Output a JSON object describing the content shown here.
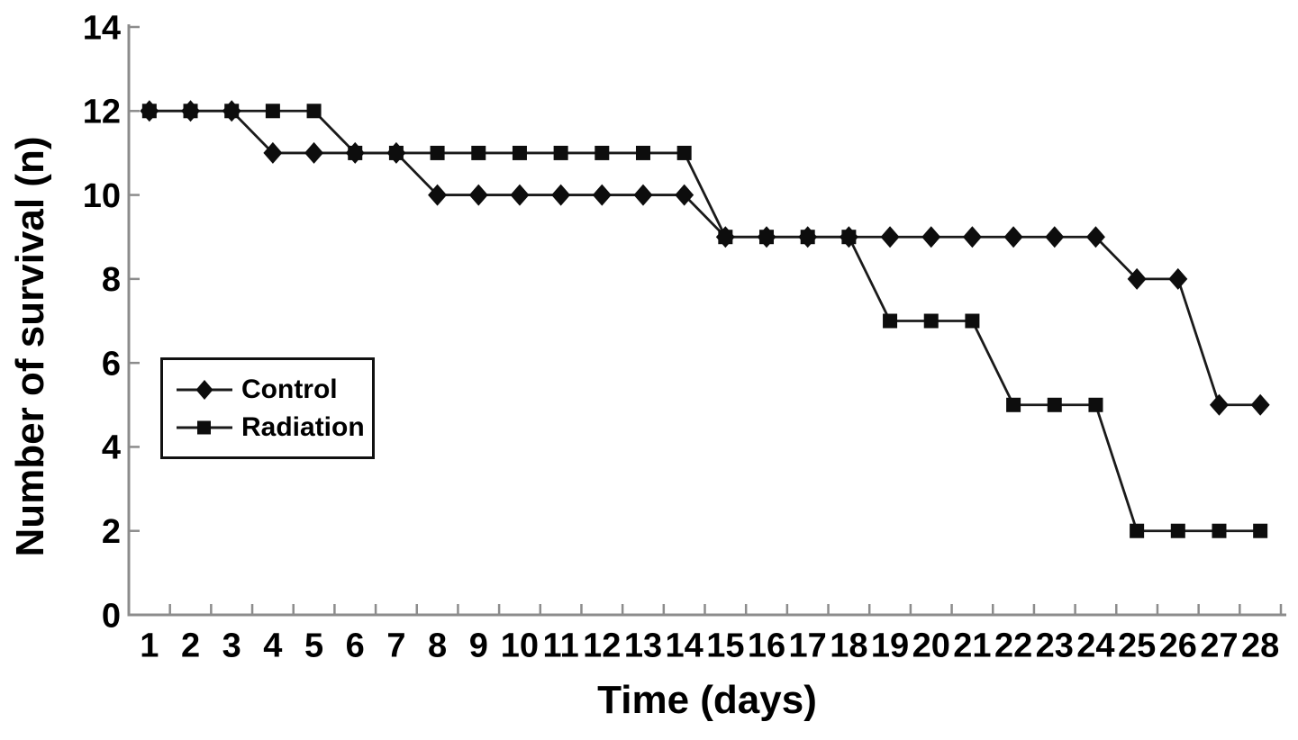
{
  "chart_data": {
    "type": "line",
    "title": "",
    "xlabel": "Time (days)",
    "ylabel": "Number of survival (n)",
    "x": [
      1,
      2,
      3,
      4,
      5,
      6,
      7,
      8,
      9,
      10,
      11,
      12,
      13,
      14,
      15,
      16,
      17,
      18,
      19,
      20,
      21,
      22,
      23,
      24,
      25,
      26,
      27,
      28
    ],
    "y_ticks": [
      0,
      2,
      4,
      6,
      8,
      10,
      12,
      14
    ],
    "ylim": [
      0,
      14
    ],
    "grid": false,
    "legend_position": "middle-left",
    "series": [
      {
        "name": "Control",
        "marker": "diamond",
        "values": [
          12,
          12,
          12,
          11,
          11,
          11,
          11,
          10,
          10,
          10,
          10,
          10,
          10,
          10,
          9,
          9,
          9,
          9,
          9,
          9,
          9,
          9,
          9,
          9,
          8,
          8,
          5,
          5
        ]
      },
      {
        "name": "Radiation",
        "marker": "square",
        "values": [
          12,
          12,
          12,
          12,
          12,
          11,
          11,
          11,
          11,
          11,
          11,
          11,
          11,
          11,
          9,
          9,
          9,
          9,
          7,
          7,
          7,
          5,
          5,
          5,
          2,
          2,
          2,
          2
        ]
      }
    ],
    "colors": {
      "line": "#1a1a1a",
      "marker": "#0d0d0d",
      "axis": "#8c8c8c",
      "text": "#000000"
    }
  }
}
